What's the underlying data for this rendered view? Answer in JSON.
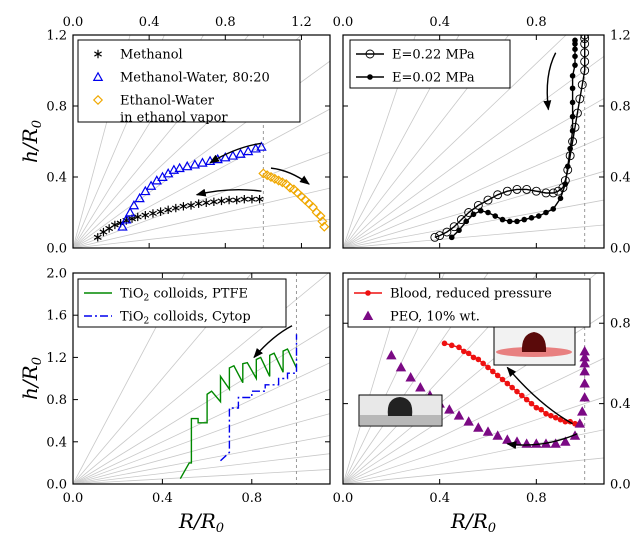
{
  "chart_data": [
    {
      "id": "top-left",
      "type": "scatter",
      "title": "",
      "xlabel": "",
      "ylabel": "h/R0",
      "xlim": [
        0,
        1.35
      ],
      "ylim": [
        0,
        1.2
      ],
      "x_ticks": [
        0.0,
        0.4,
        0.8,
        1.2
      ],
      "x_tick_labels_top": [
        "0.0",
        "0.4",
        "0.8",
        "1.2"
      ],
      "y_ticks": [
        0.0,
        0.4,
        0.8,
        1.2
      ],
      "y_tick_labels": [
        "0.0",
        "0.4",
        "0.8",
        "1.2"
      ],
      "legend_position": "top-left",
      "reference_line_x": 1.0,
      "series": [
        {
          "name": "Methanol",
          "marker": "asterisk",
          "color": "#000000",
          "x": [
            0.13,
            0.16,
            0.19,
            0.22,
            0.25,
            0.28,
            0.31,
            0.34,
            0.38,
            0.42,
            0.46,
            0.5,
            0.54,
            0.58,
            0.62,
            0.66,
            0.7,
            0.74,
            0.78,
            0.82,
            0.86,
            0.9,
            0.94,
            0.98
          ],
          "y": [
            0.06,
            0.09,
            0.11,
            0.13,
            0.14,
            0.155,
            0.165,
            0.175,
            0.185,
            0.195,
            0.205,
            0.215,
            0.225,
            0.235,
            0.24,
            0.25,
            0.255,
            0.26,
            0.265,
            0.27,
            0.27,
            0.275,
            0.275,
            0.275
          ]
        },
        {
          "name": "Methanol-Water, 80:20",
          "marker": "triangle-open",
          "color": "#0000ee",
          "x": [
            0.26,
            0.28,
            0.3,
            0.32,
            0.35,
            0.38,
            0.41,
            0.44,
            0.47,
            0.5,
            0.53,
            0.56,
            0.6,
            0.64,
            0.68,
            0.72,
            0.76,
            0.8,
            0.84,
            0.88,
            0.92,
            0.96,
            0.99
          ],
          "y": [
            0.12,
            0.16,
            0.2,
            0.24,
            0.28,
            0.32,
            0.35,
            0.38,
            0.4,
            0.42,
            0.44,
            0.45,
            0.46,
            0.47,
            0.48,
            0.49,
            0.5,
            0.51,
            0.52,
            0.53,
            0.545,
            0.56,
            0.57
          ]
        },
        {
          "name": "Ethanol-Water\nin ethanol vapor",
          "marker": "diamond-open",
          "color": "#f0a800",
          "x": [
            1.0,
            1.02,
            1.04,
            1.06,
            1.08,
            1.1,
            1.12,
            1.14,
            1.16,
            1.18,
            1.2,
            1.22,
            1.24,
            1.26,
            1.28,
            1.3,
            1.31,
            1.32
          ],
          "y": [
            0.42,
            0.41,
            0.4,
            0.39,
            0.38,
            0.37,
            0.36,
            0.34,
            0.33,
            0.31,
            0.29,
            0.27,
            0.25,
            0.23,
            0.2,
            0.18,
            0.15,
            0.12
          ]
        }
      ],
      "annotations": [
        "arrow pointing left along Methanol-Water curve",
        "arrow pointing left along Methanol curve",
        "arrow pointing right-down along Ethanol-Water curve"
      ]
    },
    {
      "id": "top-right",
      "type": "line",
      "title": "",
      "xlabel": "",
      "ylabel": "",
      "xlim": [
        0,
        1.08
      ],
      "ylim": [
        0,
        1.2
      ],
      "x_ticks": [
        0.0,
        0.4,
        0.8
      ],
      "x_tick_labels_top": [
        "0.0",
        "0.4",
        "0.8"
      ],
      "y_ticks": [
        0.0,
        0.4,
        0.8,
        1.2
      ],
      "y_tick_labels_right": [
        "0.0",
        "0.4",
        "0.8",
        "1.2"
      ],
      "legend_position": "top-left",
      "reference_line_x": 1.0,
      "series": [
        {
          "name": "E=0.22 MPa",
          "marker": "circle-open",
          "color": "#000000",
          "x": [
            0.38,
            0.4,
            0.43,
            0.46,
            0.49,
            0.52,
            0.56,
            0.6,
            0.64,
            0.68,
            0.72,
            0.76,
            0.8,
            0.84,
            0.87,
            0.89,
            0.91,
            0.92,
            0.93,
            0.94,
            0.95,
            0.96,
            0.97,
            0.98,
            0.99,
            1.0,
            1.0,
            1.0,
            1.0,
            1.0,
            1.0
          ],
          "y": [
            0.06,
            0.07,
            0.09,
            0.12,
            0.16,
            0.2,
            0.24,
            0.27,
            0.3,
            0.32,
            0.33,
            0.33,
            0.32,
            0.31,
            0.31,
            0.32,
            0.34,
            0.38,
            0.44,
            0.52,
            0.6,
            0.68,
            0.76,
            0.84,
            0.92,
            1.0,
            1.05,
            1.1,
            1.15,
            1.18,
            1.2
          ]
        },
        {
          "name": "E=0.02 MPa",
          "marker": "circle-filled",
          "color": "#000000",
          "x": [
            0.45,
            0.48,
            0.51,
            0.54,
            0.57,
            0.6,
            0.63,
            0.66,
            0.69,
            0.72,
            0.75,
            0.78,
            0.81,
            0.84,
            0.87,
            0.9,
            0.92,
            0.93,
            0.94,
            0.95,
            0.95,
            0.95,
            0.95,
            0.95,
            0.96,
            0.96,
            0.96,
            0.96,
            0.96
          ],
          "y": [
            0.06,
            0.1,
            0.15,
            0.19,
            0.21,
            0.2,
            0.18,
            0.16,
            0.15,
            0.15,
            0.16,
            0.17,
            0.18,
            0.2,
            0.22,
            0.28,
            0.36,
            0.46,
            0.56,
            0.66,
            0.74,
            0.82,
            0.9,
            0.97,
            1.03,
            1.08,
            1.12,
            1.15,
            1.17
          ]
        }
      ],
      "annotations": [
        "arrow pointing downward"
      ]
    },
    {
      "id": "bottom-left",
      "type": "line",
      "title": "",
      "xlabel": "R/R0",
      "ylabel": "h/R0",
      "xlim": [
        0,
        1.15
      ],
      "ylim": [
        0,
        2.0
      ],
      "x_ticks": [
        0.0,
        0.4,
        0.8
      ],
      "x_tick_labels": [
        "0.0",
        "0.4",
        "0.8"
      ],
      "y_ticks": [
        0.0,
        0.4,
        0.8,
        1.2,
        1.6,
        2.0
      ],
      "y_tick_labels": [
        "0.0",
        "0.4",
        "0.8",
        "1.2",
        "1.6",
        "2.0"
      ],
      "legend_position": "top-left",
      "reference_line_x": 1.0,
      "series": [
        {
          "name": "TiO2 colloids, PTFE",
          "line_style": "solid",
          "color": "#008800",
          "x": [
            0.48,
            0.52,
            0.53,
            0.53,
            0.56,
            0.56,
            0.6,
            0.6,
            0.62,
            0.66,
            0.66,
            0.7,
            0.7,
            0.72,
            0.76,
            0.76,
            0.78,
            0.82,
            0.82,
            0.84,
            0.88,
            0.88,
            0.9,
            0.94,
            0.94,
            0.96,
            1.0
          ],
          "y": [
            0.05,
            0.2,
            0.2,
            0.62,
            0.62,
            0.58,
            0.58,
            0.85,
            0.88,
            0.78,
            1.02,
            0.9,
            1.1,
            1.12,
            0.96,
            1.14,
            1.15,
            1.0,
            1.18,
            1.2,
            1.02,
            1.22,
            1.24,
            1.06,
            1.26,
            1.28,
            1.1
          ]
        },
        {
          "name": "TiO2 colloids, Cytop",
          "line_style": "dashdot",
          "color": "#0000ee",
          "x": [
            0.66,
            0.7,
            0.7,
            0.74,
            0.74,
            0.8,
            0.8,
            0.86,
            0.86,
            0.92,
            0.92,
            0.96,
            0.96,
            1.0,
            1.0
          ],
          "y": [
            0.22,
            0.3,
            0.72,
            0.72,
            0.82,
            0.82,
            0.88,
            0.88,
            0.94,
            0.94,
            1.0,
            1.0,
            1.05,
            1.05,
            1.42
          ]
        }
      ],
      "annotations": [
        "arrow pointing left-down"
      ]
    },
    {
      "id": "bottom-right",
      "type": "scatter",
      "title": "",
      "xlabel": "R/R0",
      "ylabel": "",
      "xlim": [
        0,
        1.08
      ],
      "ylim": [
        0,
        1.05
      ],
      "x_ticks": [
        0.0,
        0.4,
        0.8
      ],
      "x_tick_labels": [
        "0.0",
        "0.4",
        "0.8"
      ],
      "y_ticks": [
        0.0,
        0.4,
        0.8
      ],
      "y_tick_labels_right": [
        "0.0",
        "0.4",
        "0.8"
      ],
      "legend_position": "top-right",
      "reference_line_x": 1.0,
      "series": [
        {
          "name": "Blood, reduced pressure",
          "marker": "circle-filled",
          "color": "#ee1111",
          "x": [
            0.42,
            0.45,
            0.48,
            0.5,
            0.52,
            0.54,
            0.56,
            0.58,
            0.6,
            0.62,
            0.64,
            0.66,
            0.68,
            0.7,
            0.72,
            0.74,
            0.76,
            0.78,
            0.8,
            0.82,
            0.84,
            0.86,
            0.88,
            0.9,
            0.92,
            0.94,
            0.96,
            0.98
          ],
          "y": [
            0.7,
            0.69,
            0.68,
            0.66,
            0.65,
            0.63,
            0.62,
            0.6,
            0.58,
            0.56,
            0.54,
            0.52,
            0.5,
            0.48,
            0.46,
            0.44,
            0.42,
            0.4,
            0.38,
            0.37,
            0.35,
            0.34,
            0.33,
            0.32,
            0.31,
            0.31,
            0.3,
            0.3
          ]
        },
        {
          "name": "PEO, 10% wt.",
          "marker": "triangle-filled",
          "color": "#7b0a84",
          "x": [
            0.2,
            0.24,
            0.28,
            0.32,
            0.36,
            0.4,
            0.44,
            0.48,
            0.52,
            0.56,
            0.6,
            0.64,
            0.68,
            0.72,
            0.76,
            0.8,
            0.84,
            0.88,
            0.92,
            0.96,
            0.98,
            0.99,
            1.0,
            1.0,
            1.0,
            1.0,
            1.0,
            1.0
          ],
          "y": [
            0.64,
            0.58,
            0.53,
            0.48,
            0.44,
            0.4,
            0.37,
            0.34,
            0.31,
            0.28,
            0.26,
            0.24,
            0.22,
            0.21,
            0.2,
            0.2,
            0.2,
            0.2,
            0.21,
            0.24,
            0.3,
            0.36,
            0.43,
            0.5,
            0.56,
            0.6,
            0.63,
            0.66
          ]
        }
      ],
      "annotations": [
        "arrow from blood curve end toward upper-left",
        "arrow from PEO curve end toward left",
        "inset photo: droplet on red substrate",
        "inset photo: droplet on grey substrate"
      ]
    }
  ]
}
